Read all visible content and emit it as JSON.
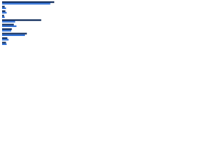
{
  "chart_data": {
    "type": "bar",
    "orientation": "horizontal",
    "categories": [
      null,
      null,
      null,
      null,
      null,
      null,
      null,
      null,
      null,
      null
    ],
    "series": [
      {
        "color": "#0f2b5b",
        "values": [
          80,
          4,
          5,
          3,
          60,
          18,
          15,
          38,
          8,
          6
        ]
      },
      {
        "color": "#2e6fd6",
        "values": [
          74,
          6,
          7,
          4,
          20,
          22,
          14,
          35,
          10,
          7
        ]
      }
    ],
    "xlim": [
      0,
      100
    ]
  }
}
